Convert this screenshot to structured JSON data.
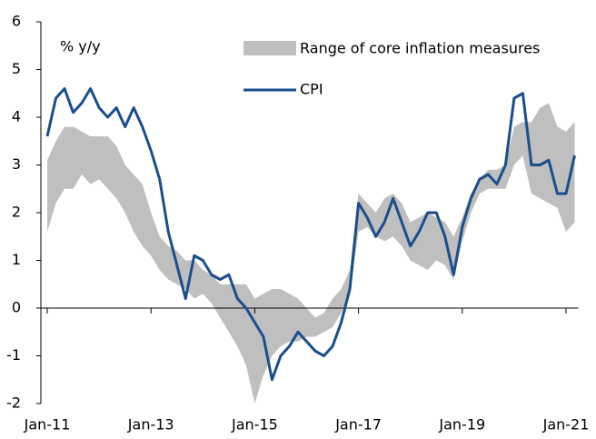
{
  "chart_data": {
    "type": "line",
    "y_label": "% y/y",
    "categories": [
      "Jan-11",
      null,
      null,
      null,
      null,
      null,
      null,
      null,
      null,
      null,
      null,
      null,
      "Jan-13",
      null,
      null,
      null,
      null,
      null,
      null,
      null,
      null,
      null,
      null,
      null,
      "Jan-15",
      null,
      null,
      null,
      null,
      null,
      null,
      null,
      null,
      null,
      null,
      null,
      "Jan-17",
      null,
      null,
      null,
      null,
      null,
      null,
      null,
      null,
      null,
      null,
      null,
      "Jan-19",
      null,
      null,
      null,
      null,
      null,
      null,
      null,
      null,
      null,
      null,
      null,
      "Jan-21",
      null
    ],
    "range": {
      "name": "Range of core inflation measures",
      "color": "#bfbfbf",
      "low": [
        1.6,
        2.2,
        2.5,
        2.5,
        2.8,
        2.6,
        2.7,
        2.5,
        2.3,
        2.0,
        1.6,
        1.3,
        1.1,
        0.8,
        0.6,
        0.5,
        0.4,
        0.2,
        0.3,
        0.1,
        -0.2,
        -0.5,
        -0.8,
        -1.2,
        -2.0,
        -1.4,
        -1.0,
        -0.8,
        -0.7,
        -0.7,
        -0.6,
        -0.6,
        -0.5,
        -0.4,
        -0.1,
        0.3,
        1.6,
        1.7,
        1.5,
        1.4,
        1.5,
        1.3,
        1.0,
        0.9,
        0.8,
        1.0,
        0.9,
        0.6,
        1.4,
        2.0,
        2.4,
        2.5,
        2.5,
        2.5,
        3.0,
        3.2,
        2.4,
        2.3,
        2.2,
        2.1,
        1.6,
        1.8
      ],
      "high": [
        3.1,
        3.5,
        3.8,
        3.8,
        3.7,
        3.6,
        3.6,
        3.6,
        3.4,
        3.0,
        2.8,
        2.6,
        2.0,
        1.5,
        1.3,
        1.2,
        1.0,
        1.0,
        0.8,
        0.7,
        0.5,
        0.5,
        0.5,
        0.5,
        0.2,
        0.3,
        0.4,
        0.4,
        0.3,
        0.2,
        0.0,
        -0.2,
        -0.1,
        0.2,
        0.4,
        0.8,
        2.4,
        2.2,
        2.0,
        2.3,
        2.4,
        2.2,
        1.8,
        1.9,
        2.0,
        1.9,
        1.8,
        1.5,
        1.9,
        2.4,
        2.7,
        2.9,
        2.9,
        3.0,
        3.8,
        3.9,
        3.9,
        4.2,
        4.3,
        3.8,
        3.7,
        3.9
      ]
    },
    "series": [
      {
        "name": "CPI",
        "color": "#1a4e8c",
        "values": [
          3.6,
          4.4,
          4.6,
          4.1,
          4.3,
          4.6,
          4.2,
          4.0,
          4.2,
          3.8,
          4.2,
          3.8,
          3.3,
          2.7,
          1.6,
          0.9,
          0.2,
          1.1,
          1.0,
          0.7,
          0.6,
          0.7,
          0.2,
          0.0,
          -0.3,
          -0.6,
          -1.5,
          -1.0,
          -0.8,
          -0.5,
          -0.7,
          -0.9,
          -1.0,
          -0.8,
          -0.3,
          0.4,
          2.2,
          1.9,
          1.5,
          1.8,
          2.3,
          1.8,
          1.3,
          1.6,
          2.0,
          2.0,
          1.5,
          0.7,
          1.7,
          2.3,
          2.7,
          2.8,
          2.6,
          3.0,
          4.4,
          4.5,
          3.0,
          3.0,
          3.1,
          2.4,
          2.4,
          3.2
        ]
      }
    ],
    "ylim": [
      -2,
      6
    ],
    "yticks": [
      -2,
      -1,
      0,
      1,
      2,
      3,
      4,
      5,
      6
    ],
    "grid": false
  }
}
